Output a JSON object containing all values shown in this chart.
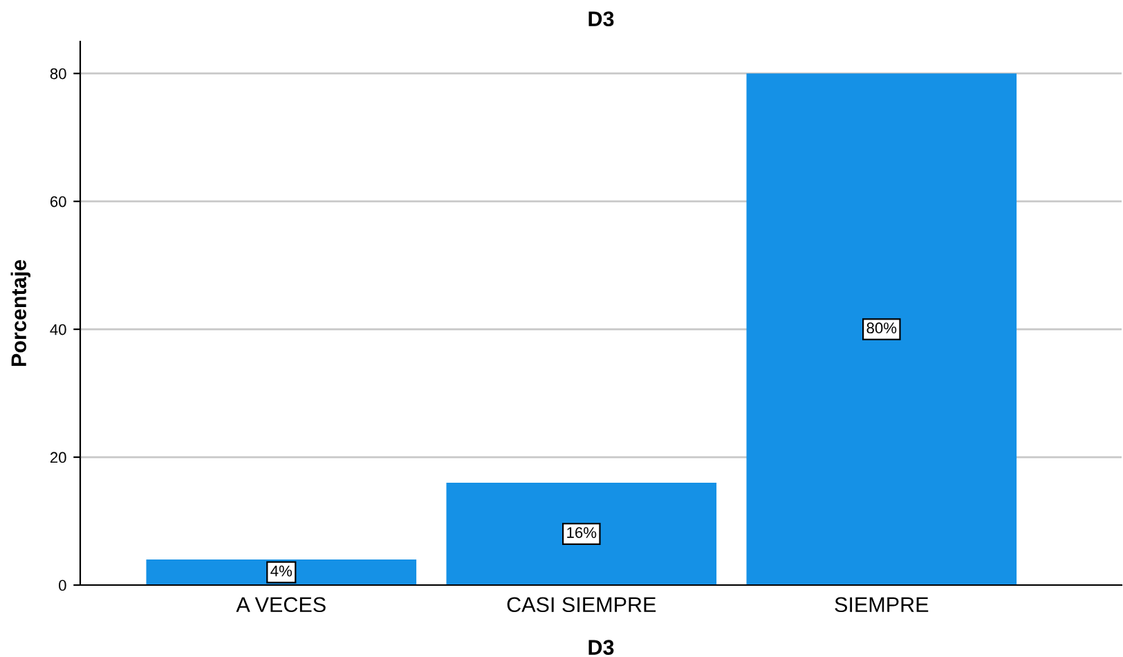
{
  "chart_data": {
    "type": "bar",
    "title": "D3",
    "xlabel": "D3",
    "ylabel": "Porcentaje",
    "categories": [
      "A VECES",
      "CASI SIEMPRE",
      "SIEMPRE"
    ],
    "values": [
      4,
      16,
      80
    ],
    "value_labels": [
      "4%",
      "16%",
      "80%"
    ],
    "color": "#1591e6",
    "ylim": [
      0,
      85
    ],
    "yticks": [
      0,
      20,
      40,
      60,
      80
    ],
    "grid": "y"
  }
}
